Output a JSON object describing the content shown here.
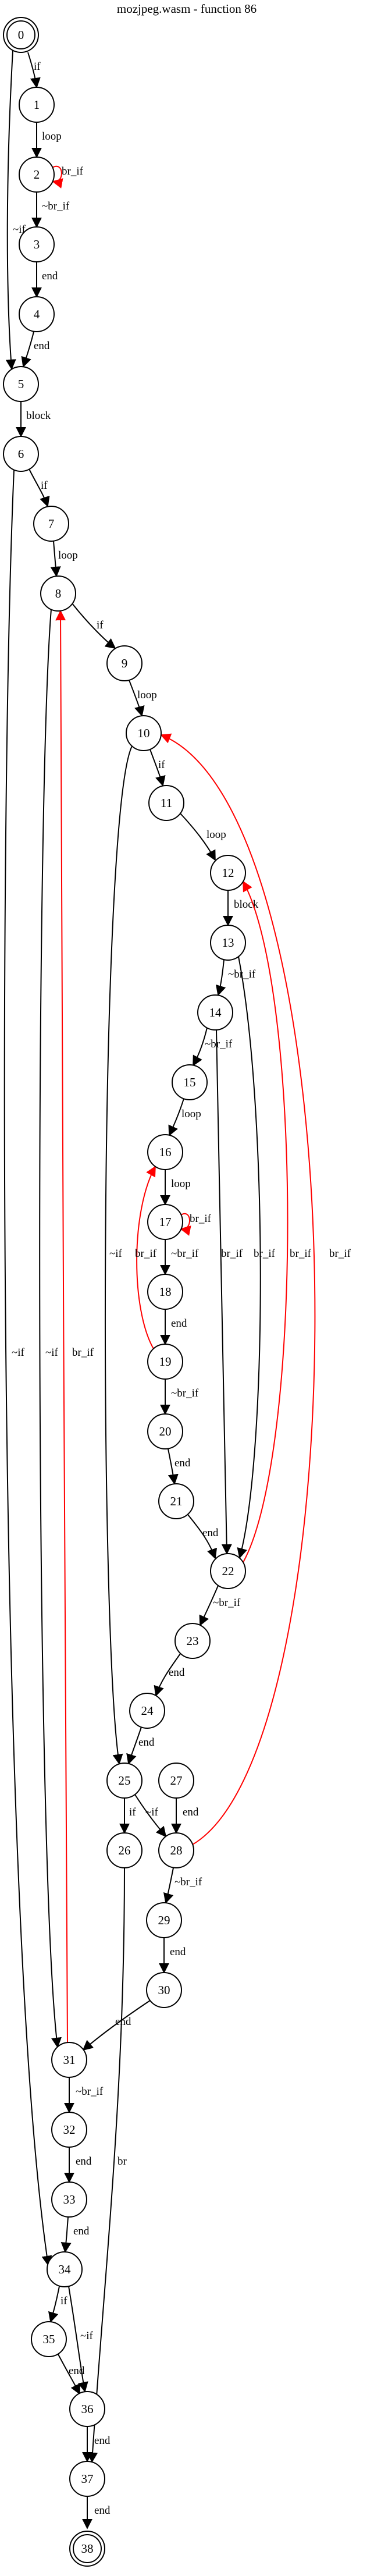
{
  "title": "mozjpeg.wasm - function 86",
  "colors": {
    "normal": "#000000",
    "back": "#ff0000"
  },
  "nodes": [
    {
      "id": "0",
      "shape": "double"
    },
    {
      "id": "1"
    },
    {
      "id": "2"
    },
    {
      "id": "3"
    },
    {
      "id": "4"
    },
    {
      "id": "5"
    },
    {
      "id": "6"
    },
    {
      "id": "7"
    },
    {
      "id": "8"
    },
    {
      "id": "9"
    },
    {
      "id": "10"
    },
    {
      "id": "11"
    },
    {
      "id": "12"
    },
    {
      "id": "13"
    },
    {
      "id": "14"
    },
    {
      "id": "15"
    },
    {
      "id": "16"
    },
    {
      "id": "17"
    },
    {
      "id": "18"
    },
    {
      "id": "19"
    },
    {
      "id": "20"
    },
    {
      "id": "21"
    },
    {
      "id": "22"
    },
    {
      "id": "23"
    },
    {
      "id": "24"
    },
    {
      "id": "25"
    },
    {
      "id": "26"
    },
    {
      "id": "27"
    },
    {
      "id": "28"
    },
    {
      "id": "29"
    },
    {
      "id": "30"
    },
    {
      "id": "31"
    },
    {
      "id": "32"
    },
    {
      "id": "33"
    },
    {
      "id": "34"
    },
    {
      "id": "35"
    },
    {
      "id": "36"
    },
    {
      "id": "37"
    },
    {
      "id": "38",
      "shape": "double"
    }
  ],
  "edges": [
    {
      "from": "0",
      "to": "1",
      "label": "if",
      "kind": "normal"
    },
    {
      "from": "0",
      "to": "5",
      "label": "~if",
      "kind": "normal"
    },
    {
      "from": "1",
      "to": "2",
      "label": "loop",
      "kind": "normal"
    },
    {
      "from": "2",
      "to": "2",
      "label": "br_if",
      "kind": "back"
    },
    {
      "from": "2",
      "to": "3",
      "label": "~br_if",
      "kind": "normal"
    },
    {
      "from": "3",
      "to": "4",
      "label": "end",
      "kind": "normal"
    },
    {
      "from": "4",
      "to": "5",
      "label": "end",
      "kind": "normal"
    },
    {
      "from": "5",
      "to": "6",
      "label": "block",
      "kind": "normal"
    },
    {
      "from": "6",
      "to": "7",
      "label": "if",
      "kind": "normal"
    },
    {
      "from": "6",
      "to": "34",
      "label": "~if",
      "kind": "normal"
    },
    {
      "from": "7",
      "to": "8",
      "label": "loop",
      "kind": "normal"
    },
    {
      "from": "8",
      "to": "9",
      "label": "if",
      "kind": "normal"
    },
    {
      "from": "8",
      "to": "31",
      "label": "~if",
      "kind": "normal"
    },
    {
      "from": "9",
      "to": "10",
      "label": "loop",
      "kind": "normal"
    },
    {
      "from": "10",
      "to": "11",
      "label": "if",
      "kind": "normal"
    },
    {
      "from": "10",
      "to": "25",
      "label": "~if",
      "kind": "normal"
    },
    {
      "from": "11",
      "to": "12",
      "label": "loop",
      "kind": "normal"
    },
    {
      "from": "12",
      "to": "13",
      "label": "block",
      "kind": "normal"
    },
    {
      "from": "13",
      "to": "14",
      "label": "~br_if",
      "kind": "normal"
    },
    {
      "from": "13",
      "to": "22",
      "label": "br_if",
      "kind": "normal"
    },
    {
      "from": "14",
      "to": "15",
      "label": "~br_if",
      "kind": "normal"
    },
    {
      "from": "14",
      "to": "22",
      "label": "br_if",
      "kind": "normal"
    },
    {
      "from": "15",
      "to": "16",
      "label": "loop",
      "kind": "normal"
    },
    {
      "from": "16",
      "to": "17",
      "label": "loop",
      "kind": "normal"
    },
    {
      "from": "17",
      "to": "17",
      "label": "br_if",
      "kind": "back"
    },
    {
      "from": "17",
      "to": "18",
      "label": "~br_if",
      "kind": "normal"
    },
    {
      "from": "18",
      "to": "19",
      "label": "end",
      "kind": "normal"
    },
    {
      "from": "19",
      "to": "16",
      "label": "br_if",
      "kind": "back"
    },
    {
      "from": "19",
      "to": "20",
      "label": "~br_if",
      "kind": "normal"
    },
    {
      "from": "20",
      "to": "21",
      "label": "end",
      "kind": "normal"
    },
    {
      "from": "21",
      "to": "22",
      "label": "end",
      "kind": "normal"
    },
    {
      "from": "22",
      "to": "12",
      "label": "br_if",
      "kind": "back"
    },
    {
      "from": "22",
      "to": "23",
      "label": "~br_if",
      "kind": "normal"
    },
    {
      "from": "23",
      "to": "24",
      "label": "end",
      "kind": "normal"
    },
    {
      "from": "24",
      "to": "25",
      "label": "end",
      "kind": "normal"
    },
    {
      "from": "25",
      "to": "26",
      "label": "if",
      "kind": "normal"
    },
    {
      "from": "25",
      "to": "28",
      "label": "~if",
      "kind": "normal"
    },
    {
      "from": "26",
      "to": "37",
      "label": "br",
      "kind": "normal"
    },
    {
      "from": "27",
      "to": "28",
      "label": "end",
      "kind": "normal"
    },
    {
      "from": "28",
      "to": "10",
      "label": "br_if",
      "kind": "back"
    },
    {
      "from": "28",
      "to": "29",
      "label": "~br_if",
      "kind": "normal"
    },
    {
      "from": "29",
      "to": "30",
      "label": "end",
      "kind": "normal"
    },
    {
      "from": "30",
      "to": "31",
      "label": "end",
      "kind": "normal"
    },
    {
      "from": "31",
      "to": "8",
      "label": "br_if",
      "kind": "back"
    },
    {
      "from": "31",
      "to": "32",
      "label": "~br_if",
      "kind": "normal"
    },
    {
      "from": "32",
      "to": "33",
      "label": "end",
      "kind": "normal"
    },
    {
      "from": "33",
      "to": "34",
      "label": "end",
      "kind": "normal"
    },
    {
      "from": "34",
      "to": "35",
      "label": "if",
      "kind": "normal"
    },
    {
      "from": "34",
      "to": "36",
      "label": "~if",
      "kind": "normal"
    },
    {
      "from": "35",
      "to": "36",
      "label": "end",
      "kind": "normal"
    },
    {
      "from": "36",
      "to": "37",
      "label": "end",
      "kind": "normal"
    },
    {
      "from": "37",
      "to": "38",
      "label": "end",
      "kind": "normal"
    }
  ]
}
